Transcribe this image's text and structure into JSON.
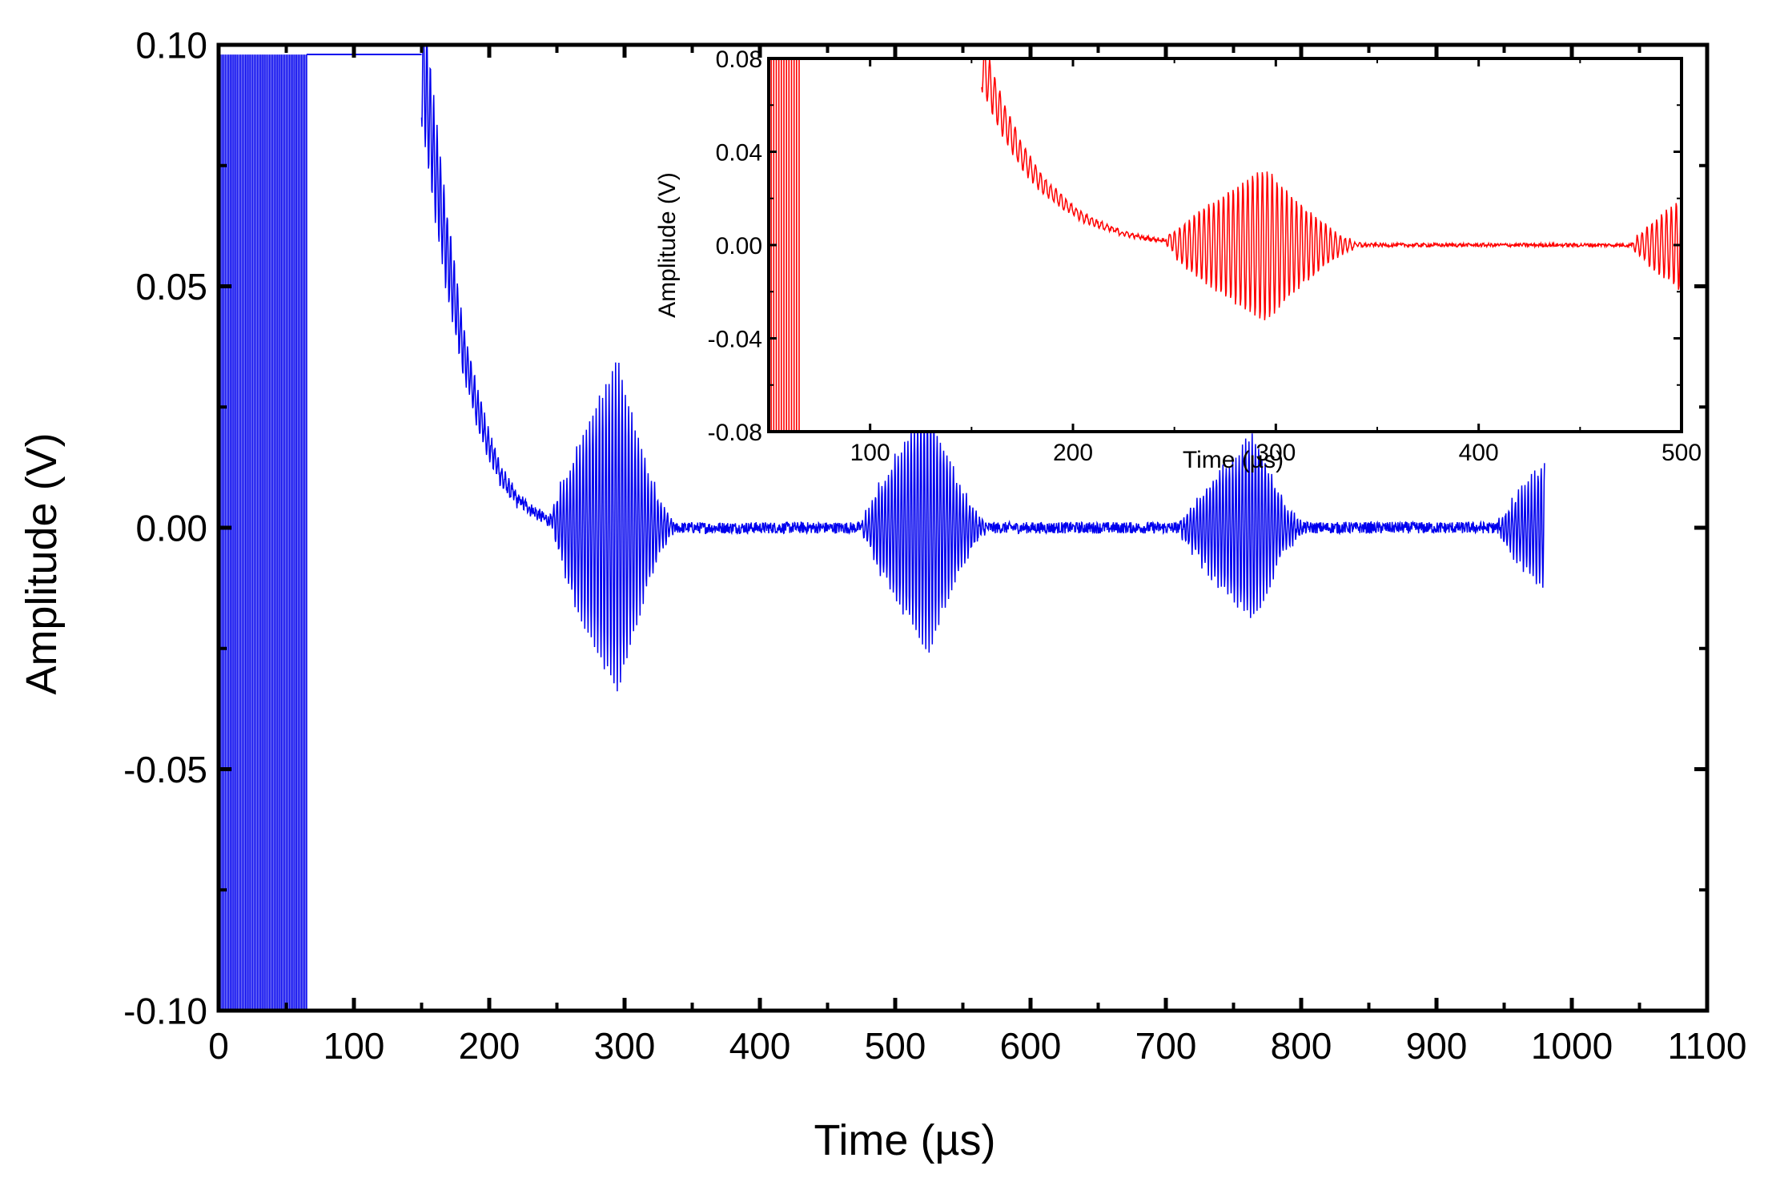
{
  "chart_data": [
    {
      "type": "line",
      "title": "",
      "xlabel": "Time (µs)",
      "ylabel": "Amplitude (V)",
      "xlim": [
        0,
        1100
      ],
      "ylim": [
        -0.1,
        0.1
      ],
      "x_ticks": [
        "0",
        "100",
        "200",
        "300",
        "400",
        "500",
        "600",
        "700",
        "800",
        "900",
        "1000",
        "1100"
      ],
      "y_ticks": [
        "0.10",
        "0.05",
        "0.00",
        "-0.05",
        "-0.10"
      ],
      "grid": false,
      "legend": "none",
      "series": [
        {
          "color": "#0000ee",
          "saturation_segment": {
            "x_range": [
              0,
              65
            ],
            "clip_level": [
              -0.1,
              0.098
            ]
          },
          "plateau": {
            "x_range": [
              65,
              150
            ],
            "y": 0.098
          },
          "decay": {
            "x": [
              150,
              160,
              170,
              180,
              190,
              200,
              210,
              220,
              230,
              240,
              250
            ],
            "y": [
              0.098,
              0.075,
              0.055,
              0.038,
              0.026,
              0.017,
              0.01,
              0.006,
              0.004,
              0.002,
              0.001
            ]
          },
          "echoes": [
            {
              "x_start": 245,
              "x_end": 340,
              "x_peak": 295,
              "peak_amplitude": 0.034
            },
            {
              "x_start": 475,
              "x_end": 570,
              "x_peak": 525,
              "peak_amplitude": 0.025
            },
            {
              "x_start": 710,
              "x_end": 805,
              "x_peak": 765,
              "peak_amplitude": 0.019
            },
            {
              "x_start": 945,
              "x_end": 980,
              "x_peak": 980,
              "peak_amplitude": 0.013
            }
          ],
          "noise_amplitude": 0.0012
        }
      ]
    },
    {
      "type": "line",
      "title": "",
      "xlabel": "Time (µs)",
      "ylabel": "Amplitude (V)",
      "xlim": [
        50,
        500
      ],
      "ylim": [
        -0.08,
        0.08
      ],
      "x_ticks": [
        "100",
        "200",
        "300",
        "400",
        "500"
      ],
      "y_ticks": [
        "0.08",
        "0.04",
        "0.00",
        "-0.04",
        "-0.08"
      ],
      "grid": false,
      "legend": "none",
      "series": [
        {
          "color": "#ff0000",
          "saturation_segment": {
            "x_range": [
              50,
              65
            ]
          },
          "decay": {
            "x": [
              155,
              165,
              175,
              185,
              195,
              205,
              215,
              225,
              235,
              245
            ],
            "y": [
              0.078,
              0.055,
              0.038,
              0.026,
              0.018,
              0.012,
              0.008,
              0.005,
              0.003,
              0.002
            ]
          },
          "echoes": [
            {
              "x_start": 245,
              "x_end": 345,
              "x_peak": 295,
              "peak_amplitude": 0.034
            },
            {
              "x_start": 475,
              "x_end": 500,
              "x_peak": 500,
              "peak_amplitude": 0.02
            }
          ],
          "noise_amplitude": 0.0008
        }
      ]
    }
  ]
}
